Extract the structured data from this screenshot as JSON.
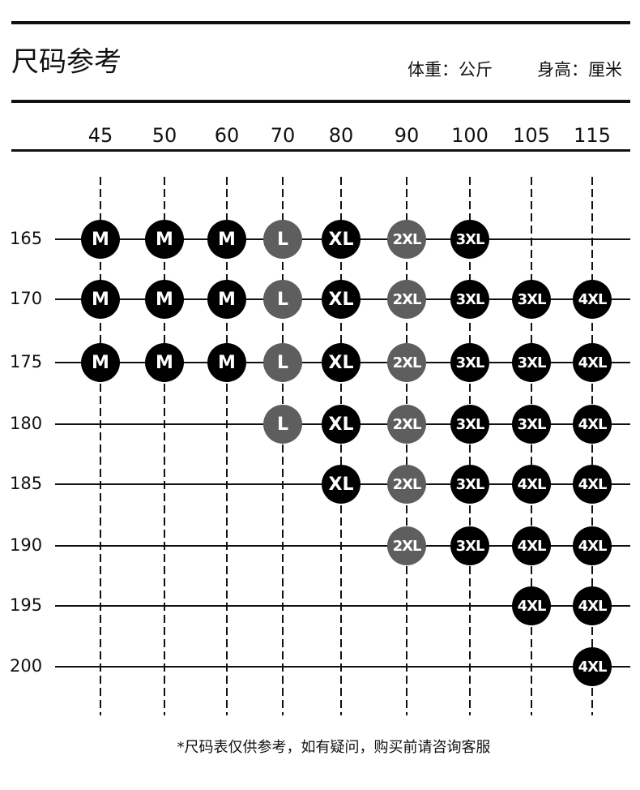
{
  "header": {
    "title": "尺码参考",
    "units": [
      "体重：公斤",
      "身高：厘米"
    ]
  },
  "weights": [
    45,
    50,
    60,
    70,
    80,
    90,
    100,
    105,
    115
  ],
  "heights": [
    165,
    170,
    175,
    180,
    185,
    190,
    195,
    200
  ],
  "grid": [
    [
      "M",
      "M",
      "M",
      "L",
      "XL",
      "2XL",
      "3XL",
      null,
      null
    ],
    [
      "M",
      "M",
      "M",
      "L",
      "XL",
      "2XL",
      "3XL",
      "3XL",
      "4XL"
    ],
    [
      "M",
      "M",
      "M",
      "L",
      "XL",
      "2XL",
      "3XL",
      "3XL",
      "4XL"
    ],
    [
      null,
      null,
      null,
      "L",
      "XL",
      "2XL",
      "3XL",
      "3XL",
      "4XL"
    ],
    [
      null,
      null,
      null,
      null,
      "XL",
      "2XL",
      "3XL",
      "4XL",
      "4XL"
    ],
    [
      null,
      null,
      null,
      null,
      null,
      "2XL",
      "3XL",
      "4XL",
      "4XL"
    ],
    [
      null,
      null,
      null,
      null,
      null,
      null,
      null,
      "4XL",
      "4XL"
    ],
    [
      null,
      null,
      null,
      null,
      null,
      null,
      null,
      null,
      "4XL"
    ]
  ],
  "size_colors": {
    "M": "#000000",
    "L": "#5e5e5e",
    "XL": "#000000",
    "2XL": "#5e5e5e",
    "3XL": "#000000",
    "4XL": "#000000"
  },
  "footnote": "*尺码表仅供参考，如有疑问，购买前请咨询客服"
}
